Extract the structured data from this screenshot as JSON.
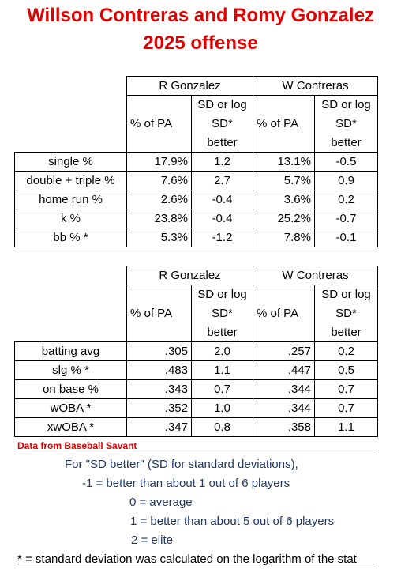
{
  "title": [
    "Willson Contreras and Romy Gonzalez",
    "2025 offense"
  ],
  "tables": [
    {
      "groups": [
        "R Gonzalez",
        "W Contreras"
      ],
      "columns": [
        [
          "% of PA"
        ],
        [
          "SD or log",
          "SD*",
          "better"
        ],
        [
          "% of PA"
        ],
        [
          "SD or log",
          "SD*",
          "better"
        ]
      ],
      "rows": [
        {
          "label": "single %",
          "cells": [
            "17.9%",
            "1.2",
            "13.1%",
            "-0.5"
          ]
        },
        {
          "label": "double + triple %",
          "cells": [
            "7.6%",
            "2.7",
            "5.7%",
            "0.9"
          ]
        },
        {
          "label": "home run %",
          "cells": [
            "2.6%",
            "-0.4",
            "3.6%",
            "0.2"
          ]
        },
        {
          "label": "k %",
          "cells": [
            "23.8%",
            "-0.4",
            "25.2%",
            "-0.7"
          ]
        },
        {
          "label": "bb % *",
          "cells": [
            "5.3%",
            "-1.2",
            "7.8%",
            "-0.1"
          ]
        }
      ]
    },
    {
      "groups": [
        "R Gonzalez",
        "W Contreras"
      ],
      "columns": [
        [
          "% of PA"
        ],
        [
          "SD or log",
          "SD*",
          "better"
        ],
        [
          "% of PA"
        ],
        [
          "SD or log",
          "SD*",
          "better"
        ]
      ],
      "rows": [
        {
          "label": "batting avg",
          "cells": [
            ".305",
            "2.0",
            ".257",
            "0.2"
          ]
        },
        {
          "label": "slg % *",
          "cells": [
            ".483",
            "1.1",
            ".447",
            "0.5"
          ]
        },
        {
          "label": "on base %",
          "cells": [
            ".343",
            "0.7",
            ".344",
            "0.7"
          ]
        },
        {
          "label": "wOBA *",
          "cells": [
            ".352",
            "1.0",
            ".344",
            "0.7"
          ]
        },
        {
          "label": "xwOBA *",
          "cells": [
            ".347",
            "0.8",
            ".358",
            "1.1"
          ]
        }
      ]
    }
  ],
  "source": "Data from Baseball Savant",
  "notes": [
    "For \"SD better\" (SD for standard deviations),",
    "-1 = better than about 1 out of 6 players",
    "0 = average",
    "1 = better than about 5 out of 6 players",
    "2 = elite"
  ],
  "footnote": "* = standard deviation was calculated on the logarithm of the stat"
}
